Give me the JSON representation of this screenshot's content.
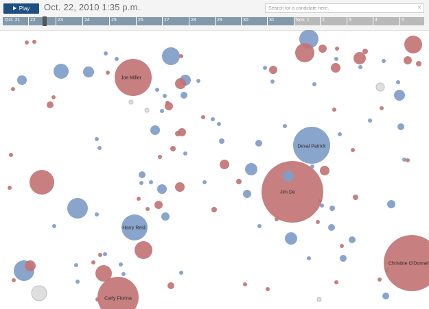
{
  "controls": {
    "play_label": "Play",
    "current_time": "Oct. 22, 2010 1:35 p.m.",
    "search_placeholder": "Search for a candidate here.",
    "clear_symbol": "×"
  },
  "timeline": {
    "ticks": [
      "Oct. 21",
      "22",
      "23",
      "24",
      "25",
      "26",
      "27",
      "28",
      "29",
      "30",
      "31",
      "Nov. 1",
      "2",
      "3",
      "4",
      "5"
    ],
    "current_index": 1.5,
    "past_color": "#8299ac",
    "future_color": "#b9b9b9"
  },
  "colors": {
    "democrat": "#7f9dc8",
    "republican": "#c27475",
    "other": "#dcdcdc"
  },
  "chart_data": {
    "type": "scatter",
    "title": "",
    "labeled": [
      {
        "name": "Joe Miller",
        "party": "republican",
        "size": 27
      },
      {
        "name": "Deval Patrick",
        "party": "democrat",
        "size": 27
      },
      {
        "name": "Jim De",
        "party": "republican",
        "size": 45
      },
      {
        "name": "Harry Reid",
        "party": "democrat",
        "size": 19
      },
      {
        "name": "Christine O'Donnell",
        "party": "republican",
        "size": 41
      },
      {
        "name": "Carly Fiorina",
        "party": "republican",
        "size": 30
      }
    ]
  }
}
